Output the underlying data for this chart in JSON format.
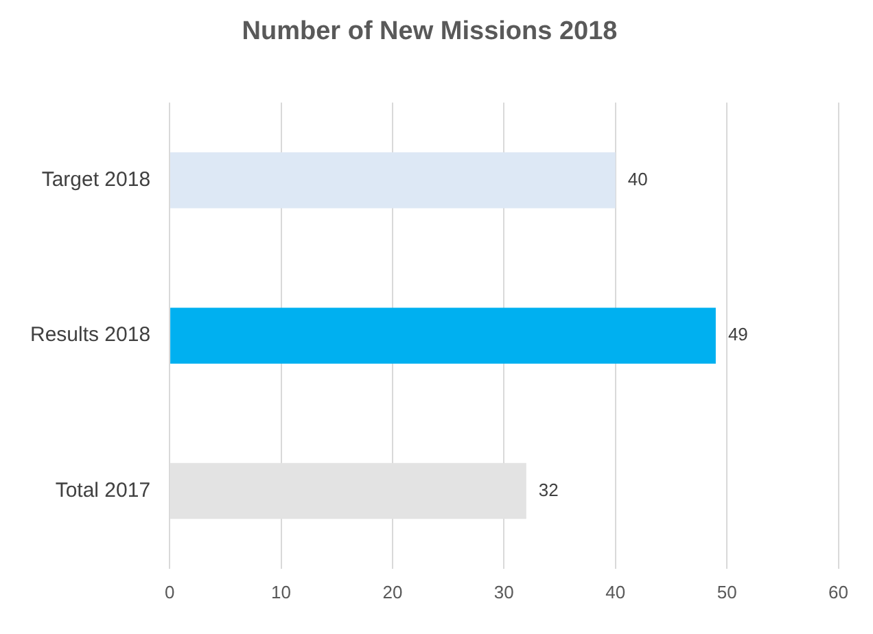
{
  "chart_data": {
    "type": "bar",
    "orientation": "horizontal",
    "title": "Number of New Missions 2018",
    "categories": [
      "Target 2018",
      "Results 2018",
      "Total 2017"
    ],
    "values": [
      40,
      49,
      32
    ],
    "colors": [
      "#dde8f5",
      "#00b0f0",
      "#e3e3e3"
    ],
    "xlim": [
      0,
      60
    ],
    "xticks": [
      0,
      10,
      20,
      30,
      40,
      50,
      60
    ],
    "grid": "x",
    "data_labels": true,
    "legend": false
  }
}
